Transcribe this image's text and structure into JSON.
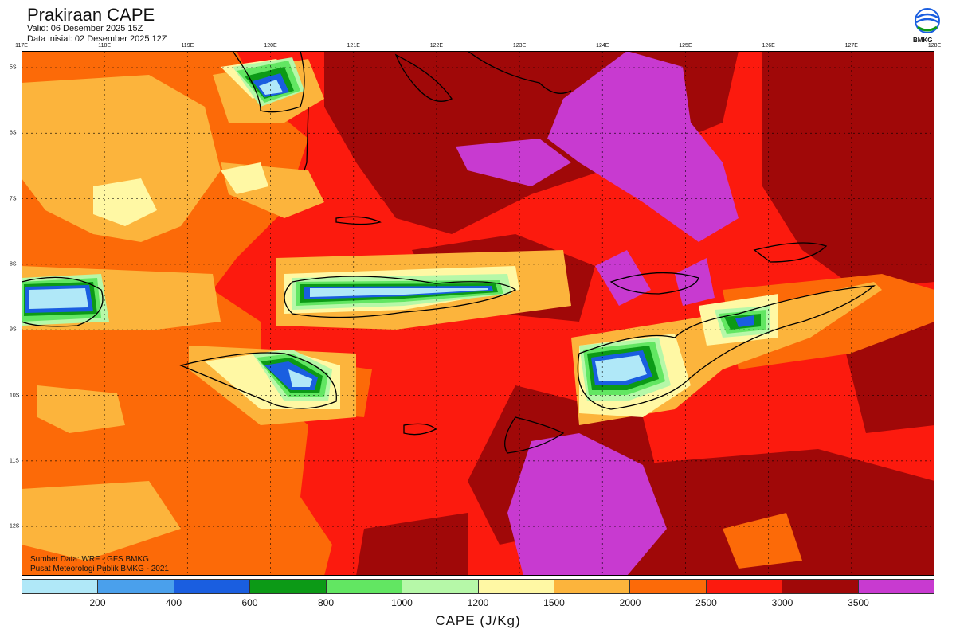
{
  "header": {
    "title": "Prakiraan CAPE",
    "valid": "Valid: 06 Desember 2025 15Z",
    "initial": "Data inisial: 02 Desember 2025 12Z"
  },
  "logo": {
    "text": "BMKG",
    "icon": "bmkg-logo-icon"
  },
  "axes": {
    "longitude_labels": [
      "117E",
      "118E",
      "119E",
      "120E",
      "121E",
      "122E",
      "123E",
      "124E",
      "125E",
      "126E",
      "127E",
      "128E"
    ],
    "latitude_labels": [
      "5S",
      "6S",
      "7S",
      "8S",
      "9S",
      "10S",
      "11S",
      "12S"
    ]
  },
  "source": {
    "line1": "Sumber Data: WRF - GFS BMKG",
    "line2": "Pusat Meteorologi Publik BMKG - 2021"
  },
  "legend": {
    "colors": [
      "#b0e8f8",
      "#4aa0ec",
      "#1a5ee0",
      "#0c9a16",
      "#62e662",
      "#b6f8a8",
      "#fff8a4",
      "#fcb43c",
      "#fc6a08",
      "#fc1a0e",
      "#a00808",
      "#c83ad0"
    ],
    "ticks": [
      "200",
      "400",
      "600",
      "800",
      "1000",
      "1200",
      "1500",
      "2000",
      "2500",
      "3000",
      "3500"
    ],
    "unit": "CAPE (J/Kg)"
  },
  "map_colors": {
    "bg": "#fc1a0e",
    "dark": "#a00808",
    "magenta": "#c83ad0",
    "orange": "#fc6a08",
    "light_orange": "#fcb43c",
    "yellow": "#fff8a4",
    "pale_green": "#b6f8a8",
    "green": "#62e662",
    "dark_green": "#0c9a16",
    "blue": "#1a5ee0",
    "mid_blue": "#4aa0ec",
    "light_blue": "#b0e8f8"
  }
}
